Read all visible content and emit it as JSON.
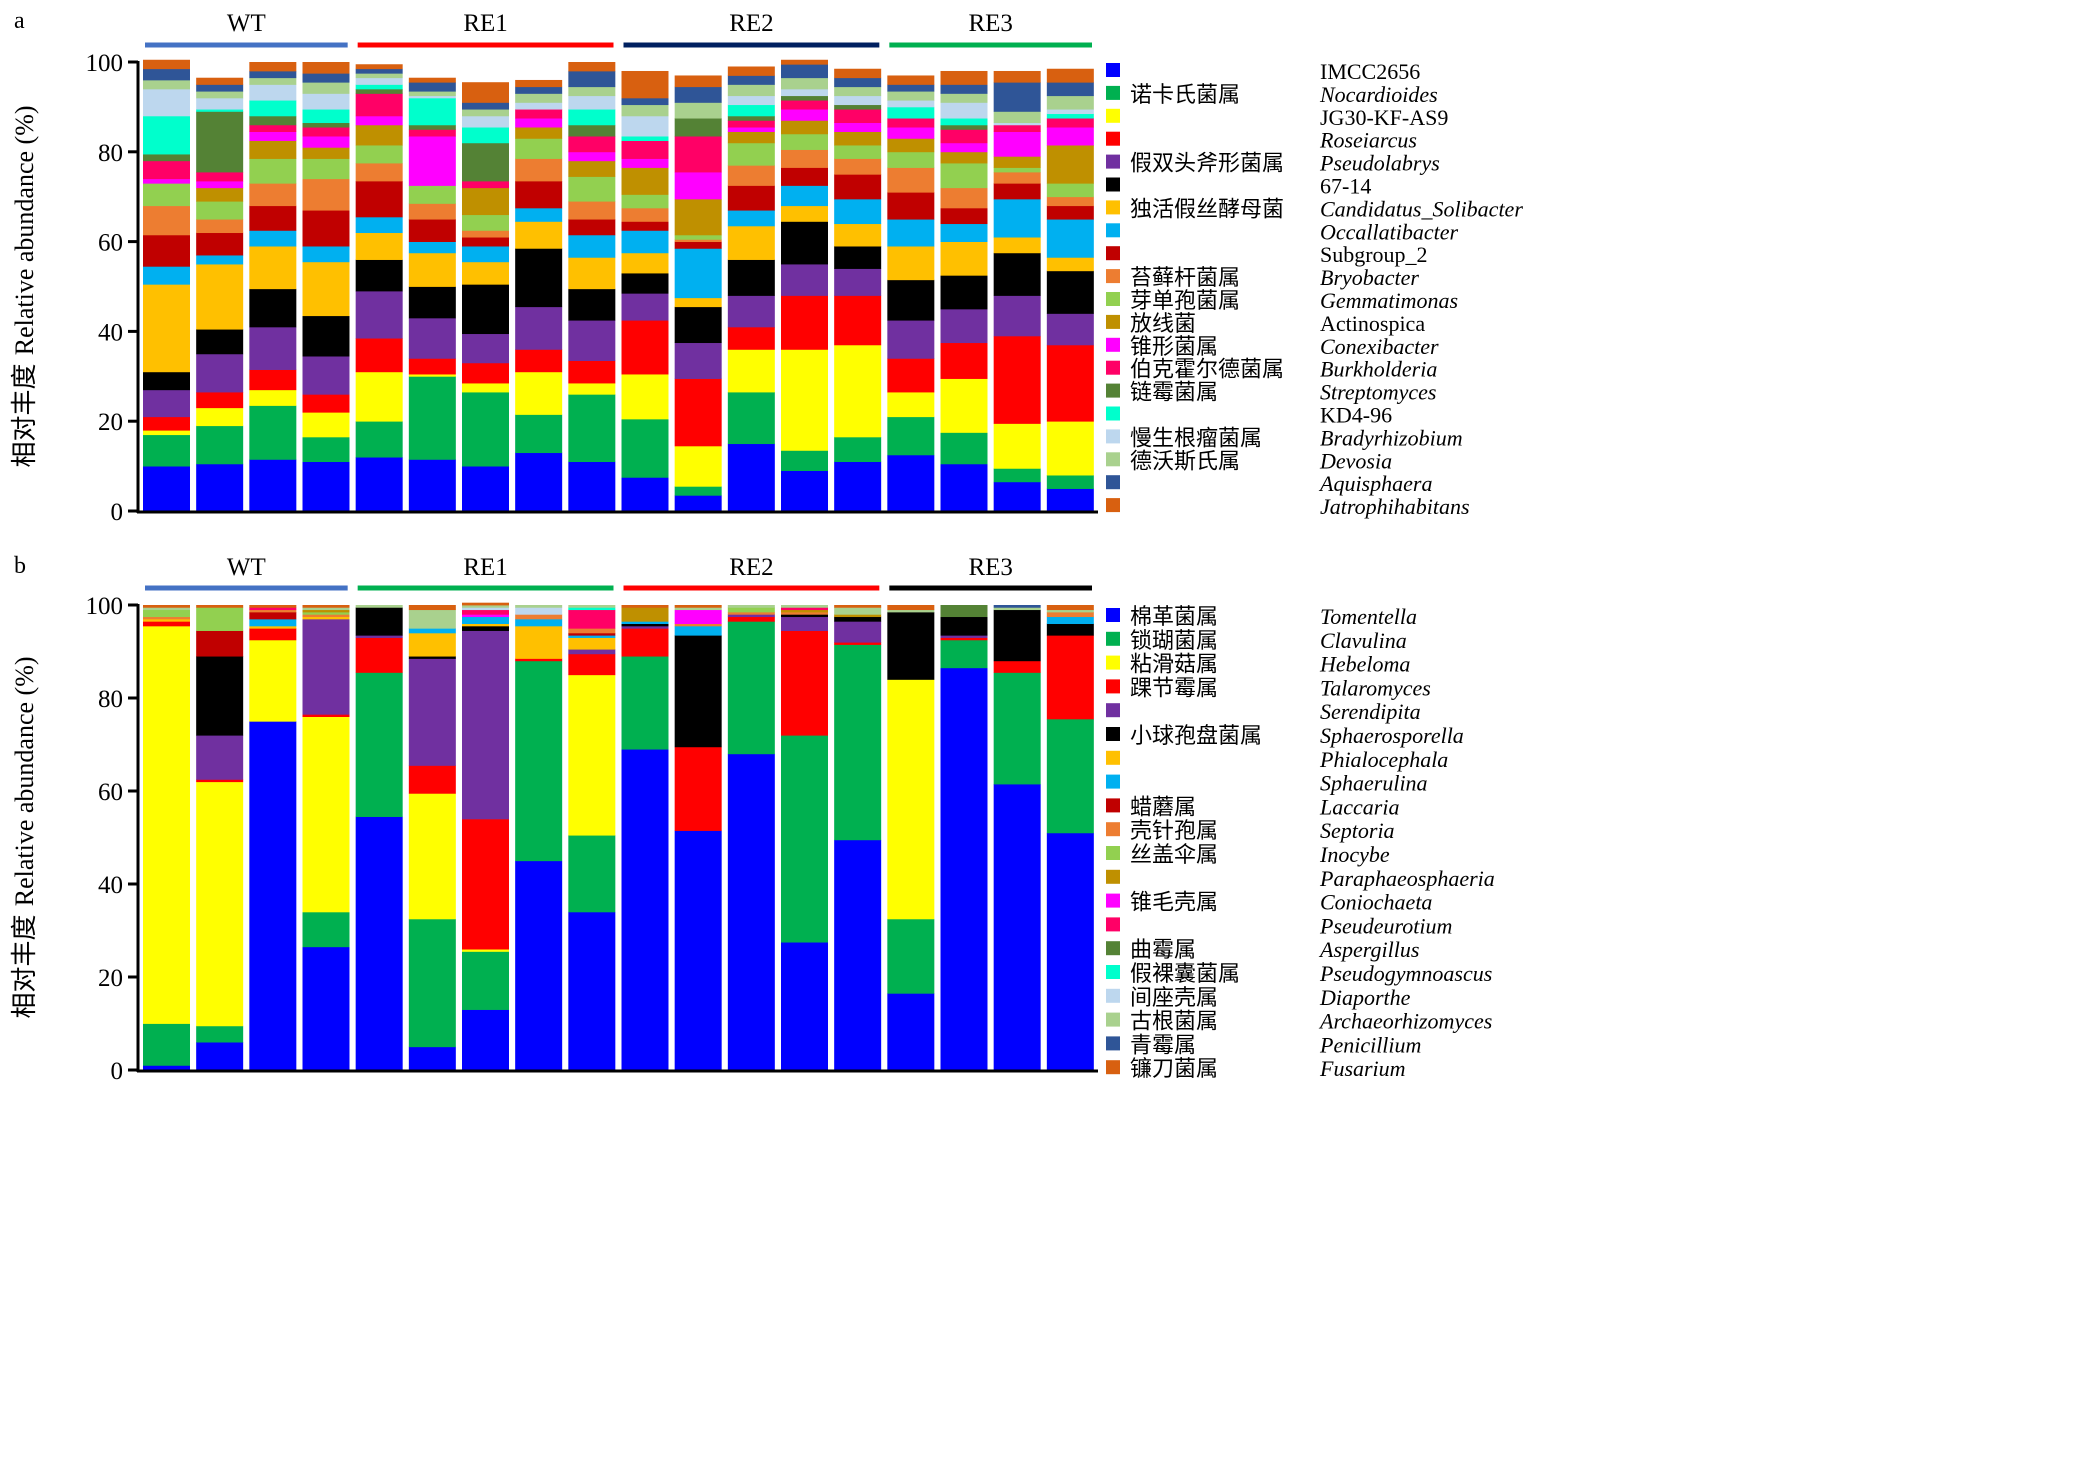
{
  "chart_data": [
    {
      "panel": "a",
      "type": "bar",
      "stacked": true,
      "ylabel_cn": "相对丰度",
      "ylabel_en": "Relative abundance (%)",
      "ylim": [
        0,
        100
      ],
      "yticks": [
        0,
        20,
        40,
        60,
        80,
        100
      ],
      "groups": [
        {
          "label": "WT",
          "color": "#4472c4",
          "n": 4
        },
        {
          "label": "RE1",
          "color": "#ff0000",
          "n": 5
        },
        {
          "label": "RE2",
          "color": "#002060",
          "n": 5
        },
        {
          "label": "RE3",
          "color": "#00b050",
          "n": 4
        }
      ],
      "legend": [
        {
          "cn": "",
          "en": "IMCC2656",
          "italic": false,
          "color": "#0000ff"
        },
        {
          "cn": "诺卡氏菌属",
          "en": "Nocardioides",
          "italic": true,
          "color": "#00b050"
        },
        {
          "cn": "",
          "en": "JG30-KF-AS9",
          "italic": false,
          "color": "#ffff00"
        },
        {
          "cn": "",
          "en": "Roseiarcus",
          "italic": true,
          "color": "#ff0000"
        },
        {
          "cn": "假双头斧形菌属",
          "en": "Pseudolabrys",
          "italic": true,
          "color": "#7030a0"
        },
        {
          "cn": "",
          "en": "67-14",
          "italic": false,
          "color": "#000000"
        },
        {
          "cn": "独活假丝酵母菌",
          "en": "Candidatus_Solibacter",
          "italic": true,
          "color": "#ffc000"
        },
        {
          "cn": "",
          "en": "Occallatibacter",
          "italic": true,
          "color": "#00b0f0"
        },
        {
          "cn": "",
          "en": "Subgroup_2",
          "italic": false,
          "color": "#c00000"
        },
        {
          "cn": "苔藓杆菌属",
          "en": "Bryobacter",
          "italic": true,
          "color": "#ed7d31"
        },
        {
          "cn": "芽单孢菌属",
          "en": "Gemmatimonas",
          "italic": true,
          "color": "#92d050"
        },
        {
          "cn": "放线菌",
          "en": "Actinospica",
          "italic": false,
          "color": "#bf9000"
        },
        {
          "cn": "锥形菌属",
          "en": "Conexibacter",
          "italic": true,
          "color": "#ff00ff"
        },
        {
          "cn": "伯克霍尔德菌属",
          "en": "Burkholderia",
          "italic": true,
          "color": "#ff0066"
        },
        {
          "cn": "链霉菌属",
          "en": "Streptomyces",
          "italic": true,
          "color": "#548235"
        },
        {
          "cn": "",
          "en": "KD4-96",
          "italic": false,
          "color": "#00ffcc"
        },
        {
          "cn": "慢生根瘤菌属",
          "en": "Bradyrhizobium",
          "italic": true,
          "color": "#bdd7ee"
        },
        {
          "cn": "德沃斯氏属",
          "en": "Devosia",
          "italic": true,
          "color": "#a9d18e"
        },
        {
          "cn": "",
          "en": "Aquisphaera",
          "italic": true,
          "color": "#2f5597"
        },
        {
          "cn": "",
          "en": "Jatrophihabitans",
          "italic": true,
          "color": "#d86010"
        }
      ],
      "samples": [
        [
          10,
          7,
          1,
          3,
          6,
          4,
          19.5,
          4,
          7,
          6.5,
          5,
          0,
          1,
          4,
          1.5,
          8.5,
          6,
          2,
          2.5,
          2
        ],
        [
          10.5,
          8.5,
          4,
          3.5,
          8.5,
          5.5,
          14.5,
          2,
          5,
          3,
          4,
          3,
          1.5,
          2,
          13.5,
          0.5,
          2.5,
          1.5,
          1.5,
          1.5
        ],
        [
          11.5,
          12,
          3.5,
          4.5,
          9.5,
          8.5,
          9.5,
          3.5,
          5.5,
          5,
          5.5,
          4,
          2,
          1.5,
          2,
          3.5,
          3.5,
          1.5,
          1.5,
          2
        ],
        [
          11,
          5.5,
          5.5,
          4,
          8.5,
          9,
          12,
          3.5,
          8,
          7,
          4.5,
          2.5,
          2.5,
          2,
          1,
          3,
          3.5,
          2.5,
          2,
          2.5
        ],
        [
          12,
          8,
          11,
          7.5,
          10.5,
          7,
          6,
          3.5,
          8,
          4,
          4,
          4.5,
          2,
          5,
          1,
          1,
          1.5,
          1,
          1,
          1
        ],
        [
          11.5,
          18.5,
          0.5,
          3.5,
          9,
          7,
          7.5,
          2.5,
          5,
          3.5,
          4,
          0,
          11,
          1.5,
          1,
          6,
          0.5,
          1,
          2,
          1
        ],
        [
          10,
          16.5,
          2,
          4.5,
          6.5,
          11,
          5,
          3.5,
          2,
          1.5,
          3.5,
          6,
          0,
          1.5,
          8.5,
          3.5,
          2.5,
          1.5,
          1.5,
          4.5
        ],
        [
          13,
          8.5,
          9.5,
          5,
          9.5,
          13,
          6,
          3,
          6,
          5,
          4.5,
          2.5,
          2,
          2,
          0,
          0,
          1.5,
          2,
          1.5,
          1.5
        ],
        [
          11,
          15,
          2.5,
          5,
          9,
          7,
          7,
          5,
          3.5,
          4,
          5.5,
          3.5,
          2,
          3.5,
          2.5,
          3.5,
          3,
          2,
          3.5,
          2
        ],
        [
          7.5,
          13,
          10,
          12,
          6,
          4.5,
          4.5,
          5,
          2,
          3,
          3,
          6,
          2,
          4,
          0,
          1,
          4.5,
          2.5,
          1.5,
          6
        ],
        [
          3.5,
          2,
          9,
          15,
          8,
          8,
          2,
          11,
          1.5,
          0.5,
          1,
          8,
          6,
          8,
          4,
          0,
          0,
          3.5,
          3.5,
          2.5
        ],
        [
          15,
          11.5,
          9.5,
          5,
          7,
          8,
          7.5,
          3.5,
          5.5,
          4.5,
          5,
          2.5,
          1,
          1.5,
          1,
          2.5,
          2,
          2.5,
          2,
          2
        ],
        [
          9,
          4.5,
          22.5,
          12,
          7,
          9.5,
          3.5,
          4.5,
          4,
          4,
          3.5,
          3,
          2.5,
          2,
          1,
          0,
          1.5,
          2.5,
          3,
          1
        ],
        [
          11,
          5.5,
          20.5,
          11,
          6,
          5,
          5,
          5.5,
          5.5,
          3.5,
          3,
          3,
          2,
          3,
          1,
          0,
          2,
          2,
          2,
          2
        ],
        [
          12.5,
          8.5,
          5.5,
          7.5,
          8.5,
          9,
          7.5,
          6,
          6,
          5.5,
          3.5,
          3,
          2.5,
          2,
          0,
          2.5,
          1.5,
          2,
          1.5,
          2
        ],
        [
          10.5,
          7,
          12,
          8,
          7.5,
          7.5,
          7.5,
          4,
          3.5,
          4.5,
          5.5,
          2.5,
          2,
          3,
          1,
          1.5,
          3.5,
          2,
          2,
          3
        ],
        [
          6.5,
          3,
          10,
          19.5,
          9,
          9.5,
          3.5,
          8.5,
          3.5,
          2.5,
          1,
          2.5,
          5.5,
          1.5,
          0,
          0,
          0.5,
          2.5,
          6.5,
          2.5
        ],
        [
          5,
          3,
          12,
          17,
          7,
          9.5,
          3,
          8.5,
          3,
          2,
          3,
          8.5,
          4,
          2,
          0,
          1,
          1,
          3,
          3,
          3
        ]
      ]
    },
    {
      "panel": "b",
      "type": "bar",
      "stacked": true,
      "ylabel_cn": "相对丰度",
      "ylabel_en": "Relative abundance (%)",
      "ylim": [
        0,
        100
      ],
      "yticks": [
        0,
        20,
        40,
        60,
        80,
        100
      ],
      "groups": [
        {
          "label": "WT",
          "color": "#4472c4",
          "n": 4
        },
        {
          "label": "RE1",
          "color": "#00b050",
          "n": 5
        },
        {
          "label": "RE2",
          "color": "#ff0000",
          "n": 5
        },
        {
          "label": "RE3",
          "color": "#000000",
          "n": 4
        }
      ],
      "legend": [
        {
          "cn": "棉革菌属",
          "en": "Tomentella",
          "italic": true,
          "color": "#0000ff"
        },
        {
          "cn": "锁瑚菌属",
          "en": "Clavulina",
          "italic": true,
          "color": "#00b050"
        },
        {
          "cn": "粘滑菇属",
          "en": "Hebeloma",
          "italic": true,
          "color": "#ffff00"
        },
        {
          "cn": "踝节霉属",
          "en": "Talaromyces",
          "italic": true,
          "color": "#ff0000"
        },
        {
          "cn": "",
          "en": "Serendipita",
          "italic": true,
          "color": "#7030a0"
        },
        {
          "cn": "小球孢盘菌属",
          "en": "Sphaerosporella",
          "italic": true,
          "color": "#000000"
        },
        {
          "cn": "",
          "en": "Phialocephala",
          "italic": true,
          "color": "#ffc000"
        },
        {
          "cn": "",
          "en": "Sphaerulina",
          "italic": true,
          "color": "#00b0f0"
        },
        {
          "cn": "蜡蘑属",
          "en": "Laccaria",
          "italic": true,
          "color": "#c00000"
        },
        {
          "cn": "壳针孢属",
          "en": "Septoria",
          "italic": true,
          "color": "#ed7d31"
        },
        {
          "cn": "丝盖伞属",
          "en": "Inocybe",
          "italic": true,
          "color": "#92d050"
        },
        {
          "cn": "",
          "en": "Paraphaeosphaeria",
          "italic": true,
          "color": "#bf9000"
        },
        {
          "cn": "锥毛壳属",
          "en": "Coniochaeta",
          "italic": true,
          "color": "#ff00ff"
        },
        {
          "cn": "",
          "en": "Pseudeurotium",
          "italic": true,
          "color": "#ff0066"
        },
        {
          "cn": "曲霉属",
          "en": "Aspergillus",
          "italic": true,
          "color": "#548235"
        },
        {
          "cn": "假裸囊菌属",
          "en": "Pseudogymnoascus",
          "italic": true,
          "color": "#00ffcc"
        },
        {
          "cn": "间座壳属",
          "en": "Diaporthe",
          "italic": true,
          "color": "#bdd7ee"
        },
        {
          "cn": "古根菌属",
          "en": "Archaeorhizomyces",
          "italic": true,
          "color": "#a9d18e"
        },
        {
          "cn": "青霉属",
          "en": "Penicillium",
          "italic": true,
          "color": "#2f5597"
        },
        {
          "cn": "镰刀菌属",
          "en": "Fusarium",
          "italic": true,
          "color": "#d86010"
        }
      ],
      "samples": [
        [
          1,
          9,
          85.5,
          1,
          0,
          0,
          0.5,
          0,
          0,
          0.5,
          1.5,
          0,
          0,
          0,
          0,
          0,
          0,
          0.5,
          0,
          0.5
        ],
        [
          6,
          3.5,
          52.5,
          0.5,
          9.5,
          17,
          0,
          0,
          5.5,
          0,
          5,
          0,
          0,
          0,
          0,
          0,
          0,
          0,
          0,
          0.5
        ],
        [
          75,
          0,
          17.5,
          2.5,
          0,
          0,
          0.5,
          1.5,
          1.5,
          0.5,
          0,
          0,
          0,
          0.5,
          0,
          0,
          0,
          0,
          0,
          0.5
        ],
        [
          26.5,
          7.5,
          42,
          0.5,
          20.5,
          0,
          0.5,
          0,
          0,
          0.5,
          0.5,
          0.5,
          0,
          0,
          0,
          0,
          0,
          0.5,
          0,
          0.5
        ],
        [
          54.5,
          31,
          0,
          7.5,
          0.5,
          6,
          0,
          0,
          0,
          0,
          0,
          0,
          0,
          0,
          0,
          0,
          0,
          0.5,
          0,
          0
        ],
        [
          5,
          27.5,
          27,
          6,
          23,
          0.5,
          5,
          1,
          0,
          0,
          0,
          0,
          0,
          0,
          0,
          0,
          0,
          4,
          0,
          1
        ],
        [
          13,
          12.5,
          0.5,
          28,
          40.5,
          1,
          0.5,
          1.5,
          0,
          0,
          0,
          0,
          0.5,
          1,
          0,
          0,
          0.5,
          0.5,
          0,
          0.5
        ],
        [
          45,
          43,
          0,
          0.5,
          0,
          0,
          7,
          1.5,
          0,
          1,
          0,
          0,
          0,
          0,
          0,
          0,
          1.5,
          0.5,
          0,
          0
        ],
        [
          34,
          16.5,
          34.5,
          4.5,
          1,
          0,
          2.5,
          0.5,
          0.5,
          1,
          0,
          0,
          0,
          4,
          0,
          0.5,
          0,
          0.5,
          0,
          0
        ],
        [
          69,
          20,
          0,
          6,
          0.5,
          0.5,
          0,
          0.5,
          0,
          0,
          0,
          3,
          0,
          0,
          0,
          0,
          0,
          0,
          0,
          0.5
        ],
        [
          51.5,
          0,
          0,
          18,
          0,
          24,
          0,
          2,
          0,
          0.5,
          0,
          0,
          3,
          0,
          0,
          0,
          0,
          0.5,
          0,
          0.5
        ],
        [
          68,
          28.5,
          0,
          1,
          0.5,
          0,
          0,
          0,
          0,
          0.5,
          1,
          0,
          0,
          0,
          0,
          0,
          0,
          0.5,
          0,
          0
        ],
        [
          27.5,
          44.5,
          0,
          22.5,
          3,
          0.5,
          0,
          0,
          0,
          0.5,
          0,
          0.5,
          0,
          0.5,
          0,
          0,
          0,
          0.5,
          0,
          0
        ],
        [
          49.5,
          42,
          0,
          0.5,
          4.5,
          1,
          0,
          0,
          0,
          0,
          0,
          0.5,
          0,
          0,
          0,
          0,
          0,
          1.5,
          0,
          0.5
        ],
        [
          16.5,
          16,
          51.5,
          0,
          0,
          14.5,
          0,
          0,
          0,
          0,
          0,
          0,
          0,
          0,
          0,
          0,
          0,
          0.5,
          0,
          1
        ],
        [
          86.5,
          6,
          0,
          0.5,
          0.5,
          4,
          0,
          0,
          0,
          0,
          0,
          0,
          0,
          0,
          2.5,
          0,
          0,
          0,
          0,
          0
        ],
        [
          61.5,
          24,
          0,
          2.5,
          0,
          11,
          0,
          0,
          0,
          0,
          0,
          0,
          0,
          0,
          0,
          0,
          0,
          0.5,
          0.5,
          0
        ],
        [
          51,
          24.5,
          0,
          18,
          0,
          2.5,
          0,
          1.5,
          0,
          1,
          0,
          0,
          0,
          0,
          0,
          0,
          0,
          0.5,
          0,
          1
        ]
      ]
    }
  ]
}
